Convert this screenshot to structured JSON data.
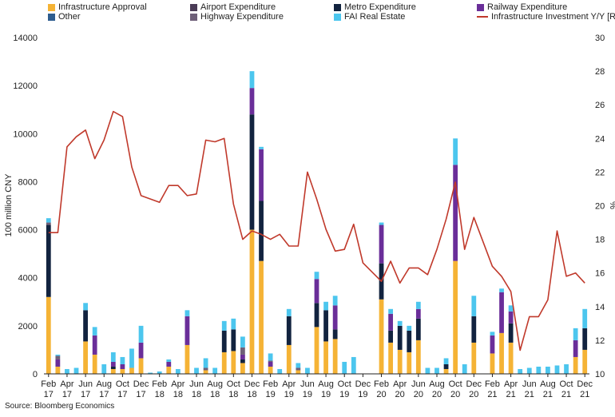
{
  "chart_data": {
    "type": "bar",
    "stacked": true,
    "ylabel": "100 million CNY",
    "y2label": "%",
    "ylim": [
      0,
      14000
    ],
    "y2lim": [
      10,
      30
    ],
    "yticks": [
      "0",
      "2000",
      "4000",
      "6000",
      "8000",
      "10000",
      "12000",
      "14000"
    ],
    "y2ticks": [
      "10",
      "12",
      "14",
      "16",
      "18",
      "20",
      "22",
      "24",
      "26",
      "28",
      "30"
    ],
    "months": [
      "Feb 17",
      "Mar 17",
      "Apr 17",
      "May 17",
      "Jun 17",
      "Jul 17",
      "Aug 17",
      "Sep 17",
      "Oct 17",
      "Nov 17",
      "Dec 17",
      "Jan 18",
      "Feb 18",
      "Mar 18",
      "Apr 18",
      "May 18",
      "Jun 18",
      "Jul 18",
      "Aug 18",
      "Sep 18",
      "Oct 18",
      "Nov 18",
      "Dec 18",
      "Jan 19",
      "Feb 19",
      "Mar 19",
      "Apr 19",
      "May 19",
      "Jun 19",
      "Jul 19",
      "Aug 19",
      "Sep 19",
      "Oct 19",
      "Nov 19",
      "Dec 19",
      "Jan 20",
      "Feb 20",
      "Mar 20",
      "Apr 20",
      "May 20",
      "Jun 20",
      "Jul 20",
      "Aug 20",
      "Sep 20",
      "Oct 20",
      "Nov 20",
      "Dec 20",
      "Jan 21",
      "Feb 21",
      "Mar 21",
      "Apr 21",
      "May 21",
      "Jun 21",
      "Jul 21",
      "Aug 21",
      "Sep 21",
      "Oct 21",
      "Nov 21",
      "Dec 21"
    ],
    "xtick_labels": [
      {
        "month": "Feb",
        "year": "17",
        "index": 0
      },
      {
        "month": "Apr",
        "year": "17",
        "index": 2
      },
      {
        "month": "Jun",
        "year": "17",
        "index": 4
      },
      {
        "month": "Aug",
        "year": "17",
        "index": 6
      },
      {
        "month": "Oct",
        "year": "17",
        "index": 8
      },
      {
        "month": "Dec",
        "year": "17",
        "index": 10
      },
      {
        "month": "Feb",
        "year": "18",
        "index": 12
      },
      {
        "month": "Apr",
        "year": "18",
        "index": 14
      },
      {
        "month": "Jun",
        "year": "18",
        "index": 16
      },
      {
        "month": "Aug",
        "year": "18",
        "index": 18
      },
      {
        "month": "Oct",
        "year": "18",
        "index": 20
      },
      {
        "month": "Dec",
        "year": "18",
        "index": 22
      },
      {
        "month": "Feb",
        "year": "19",
        "index": 24
      },
      {
        "month": "Apr",
        "year": "19",
        "index": 26
      },
      {
        "month": "Jun",
        "year": "19",
        "index": 28
      },
      {
        "month": "Aug",
        "year": "19",
        "index": 30
      },
      {
        "month": "Oct",
        "year": "19",
        "index": 32
      },
      {
        "month": "Dec",
        "year": "19",
        "index": 34
      },
      {
        "month": "Feb",
        "year": "20",
        "index": 36
      },
      {
        "month": "Apr",
        "year": "20",
        "index": 38
      },
      {
        "month": "Jun",
        "year": "20",
        "index": 40
      },
      {
        "month": "Aug",
        "year": "20",
        "index": 42
      },
      {
        "month": "Oct",
        "year": "20",
        "index": 44
      },
      {
        "month": "Dec",
        "year": "20",
        "index": 46
      },
      {
        "month": "Feb",
        "year": "21",
        "index": 48
      },
      {
        "month": "Apr",
        "year": "21",
        "index": 50
      },
      {
        "month": "Jun",
        "year": "21",
        "index": 52
      },
      {
        "month": "Aug",
        "year": "21",
        "index": 54
      },
      {
        "month": "Oct",
        "year": "21",
        "index": 56
      },
      {
        "month": "Dec",
        "year": "21",
        "index": 58
      }
    ],
    "series": [
      {
        "name": "Infrastructure Approval",
        "color": "#F5B335",
        "values": [
          3200,
          300,
          0,
          0,
          1350,
          800,
          0,
          200,
          200,
          250,
          650,
          0,
          0,
          300,
          0,
          1200,
          0,
          150,
          0,
          900,
          950,
          450,
          6000,
          4700,
          300,
          0,
          1200,
          150,
          0,
          1950,
          1350,
          1450,
          0,
          0,
          0,
          0,
          3100,
          1300,
          1000,
          900,
          1400,
          0,
          0,
          200,
          4700,
          0,
          1300,
          0,
          850,
          1700,
          1300,
          0,
          0,
          0,
          0,
          0,
          0,
          700,
          1000
        ]
      },
      {
        "name": "Airport Expenditure",
        "color": "#4A3B56",
        "values": [
          0,
          0,
          0,
          0,
          0,
          0,
          0,
          0,
          0,
          0,
          0,
          0,
          0,
          0,
          0,
          0,
          0,
          0,
          0,
          0,
          0,
          0,
          0,
          0,
          0,
          0,
          0,
          0,
          0,
          0,
          0,
          0,
          0,
          0,
          0,
          0,
          0,
          0,
          0,
          0,
          0,
          0,
          0,
          0,
          0,
          0,
          0,
          0,
          0,
          0,
          0,
          0,
          0,
          0,
          0,
          0,
          0,
          0,
          0
        ]
      },
      {
        "name": "Metro Expenditure",
        "color": "#12233F",
        "values": [
          3000,
          0,
          0,
          0,
          1300,
          0,
          0,
          100,
          0,
          0,
          0,
          0,
          0,
          0,
          0,
          0,
          0,
          0,
          0,
          900,
          900,
          150,
          4800,
          2500,
          0,
          0,
          1200,
          0,
          0,
          1000,
          1300,
          400,
          0,
          0,
          0,
          0,
          1500,
          500,
          1000,
          900,
          900,
          0,
          0,
          200,
          0,
          0,
          1100,
          0,
          0,
          0,
          800,
          0,
          0,
          0,
          0,
          0,
          0,
          0,
          900
        ]
      },
      {
        "name": "Railway Expenditure",
        "color": "#6A2E99",
        "values": [
          0,
          300,
          0,
          0,
          0,
          800,
          0,
          200,
          200,
          0,
          650,
          0,
          0,
          200,
          0,
          1200,
          0,
          0,
          0,
          0,
          0,
          200,
          1100,
          2150,
          200,
          0,
          0,
          0,
          0,
          1000,
          0,
          1000,
          0,
          0,
          0,
          0,
          1600,
          700,
          0,
          0,
          400,
          0,
          0,
          0,
          4000,
          0,
          0,
          0,
          750,
          1700,
          500,
          0,
          0,
          0,
          0,
          0,
          0,
          700,
          0
        ]
      },
      {
        "name": "Other",
        "color": "#2E5D8F",
        "values": [
          0,
          0,
          0,
          0,
          0,
          0,
          0,
          0,
          0,
          0,
          0,
          0,
          0,
          0,
          0,
          0,
          0,
          0,
          0,
          0,
          0,
          0,
          0,
          0,
          0,
          0,
          0,
          0,
          0,
          0,
          0,
          0,
          0,
          0,
          0,
          0,
          0,
          0,
          0,
          0,
          0,
          0,
          0,
          0,
          0,
          0,
          0,
          0,
          0,
          0,
          0,
          0,
          0,
          0,
          0,
          0,
          0,
          0,
          0
        ]
      },
      {
        "name": "Highway Expenditure",
        "color": "#6E5F78",
        "values": [
          100,
          150,
          0,
          0,
          0,
          0,
          0,
          0,
          0,
          0,
          0,
          0,
          0,
          0,
          0,
          0,
          0,
          100,
          0,
          0,
          0,
          300,
          0,
          0,
          50,
          0,
          0,
          100,
          0,
          0,
          0,
          0,
          0,
          0,
          0,
          0,
          0,
          0,
          0,
          0,
          0,
          0,
          0,
          0,
          0,
          0,
          0,
          0,
          0,
          0,
          0,
          0,
          0,
          0,
          0,
          0,
          0,
          0,
          0
        ]
      },
      {
        "name": "FAI Real Estate",
        "color": "#4CC6EE",
        "values": [
          180,
          50,
          200,
          250,
          300,
          350,
          400,
          400,
          300,
          800,
          700,
          50,
          100,
          100,
          200,
          250,
          250,
          400,
          250,
          400,
          450,
          450,
          700,
          100,
          300,
          200,
          300,
          200,
          250,
          300,
          350,
          400,
          500,
          700,
          0,
          0,
          100,
          200,
          200,
          200,
          300,
          250,
          250,
          250,
          1100,
          400,
          850,
          0,
          150,
          150,
          250,
          200,
          250,
          300,
          300,
          350,
          400,
          500,
          800
        ]
      }
    ],
    "line_series": {
      "name": "Infrastructure Investment Y/Y [RHS]",
      "color": "#C0392B",
      "axis": "right",
      "values": [
        18.4,
        18.4,
        23.5,
        24.1,
        24.5,
        22.8,
        23.9,
        25.6,
        25.3,
        22.3,
        20.6,
        null,
        20.2,
        21.2,
        21.2,
        20.6,
        20.7,
        23.9,
        23.8,
        24.0,
        20.1,
        18.0,
        18.5,
        18.3,
        18.0,
        18.3,
        17.6,
        17.6,
        22.0,
        20.4,
        18.6,
        17.3,
        17.4,
        18.9,
        16.6,
        null,
        15.5,
        16.7,
        15.4,
        16.3,
        16.3,
        15.9,
        17.4,
        19.2,
        21.4,
        17.4,
        19.3,
        null,
        16.4,
        15.8,
        14.9,
        11.4,
        13.4,
        13.4,
        14.4,
        18.5,
        15.8,
        16.0,
        15.4
      ]
    }
  },
  "legend": [
    {
      "name": "Infrastructure Approval",
      "color": "#F5B335",
      "kind": "bar"
    },
    {
      "name": "Airport Expenditure",
      "color": "#4A3B56",
      "kind": "bar"
    },
    {
      "name": "Metro Expenditure",
      "color": "#12233F",
      "kind": "bar"
    },
    {
      "name": "Railway Expenditure",
      "color": "#6A2E99",
      "kind": "bar"
    },
    {
      "name": "Other",
      "color": "#2E5D8F",
      "kind": "bar"
    },
    {
      "name": "Highway Expenditure",
      "color": "#6E5F78",
      "kind": "bar"
    },
    {
      "name": "FAI Real Estate",
      "color": "#4CC6EE",
      "kind": "bar"
    },
    {
      "name": "Infrastructure Investment Y/Y [RHS]",
      "color": "#C0392B",
      "kind": "line"
    }
  ],
  "source": "Source: Bloomberg Economics"
}
